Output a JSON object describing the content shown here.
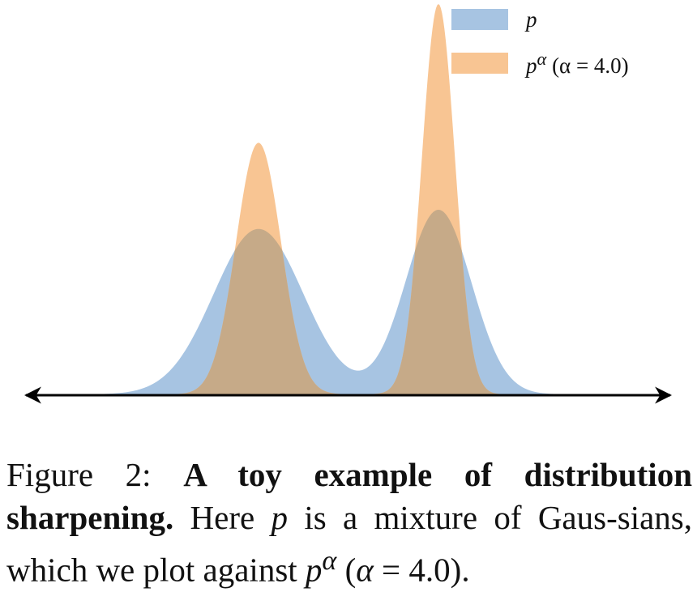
{
  "chart_data": {
    "type": "area",
    "title": "",
    "xlabel": "",
    "ylabel": "",
    "grid": false,
    "legend_position": "top-right",
    "axis": "double-headed horizontal arrow, no ticks",
    "mixture_components": [
      {
        "mean": -1.5,
        "std": 0.75,
        "weight": 0.55
      },
      {
        "mean": 1.5,
        "std": 0.55,
        "weight": 0.45
      }
    ],
    "alpha": 4.0,
    "x_range": [
      -5.0,
      5.0
    ],
    "series": [
      {
        "name": "p",
        "legend_math": "p",
        "color": "#a7c4e2"
      },
      {
        "name": "p^α (α = 4.0)",
        "legend_math": "p^α (α = 4.0)",
        "color": "#f8c593"
      }
    ],
    "overlap_color": "#c6aa88"
  },
  "legend": {
    "p_label": "p",
    "palpha_base": "p",
    "palpha_sup": "α",
    "palpha_rest": " (α = 4.0)"
  },
  "caption": {
    "prefix": "Figure 2: ",
    "bold": "A toy example of distribution sharpening.",
    "text1": " Here ",
    "p1": "p",
    "text2": " is a mixture of Gaus-sians, which we plot against ",
    "p2": "p",
    "sup": "α",
    "text3": " (",
    "alpha": "α",
    "text4": " = 4.0)."
  }
}
